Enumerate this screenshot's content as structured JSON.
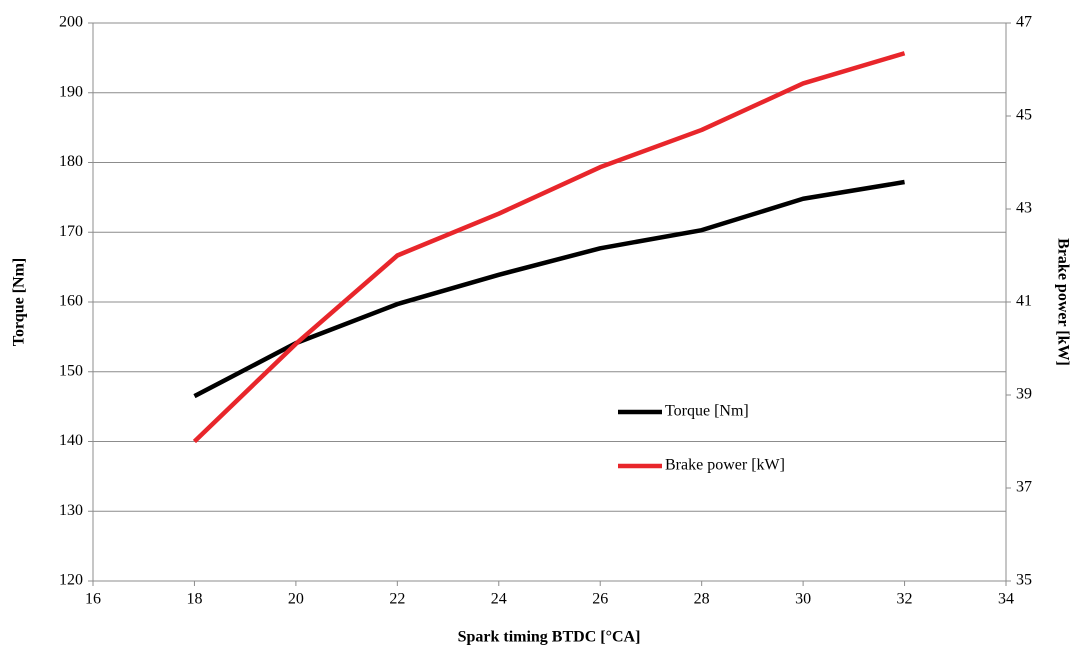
{
  "chart_data": {
    "type": "line",
    "x_label": "Spark timing BTDC [°CA]",
    "y_label": "Torque [Nm]",
    "y2_label": "Brake power [kW]",
    "x": [
      18,
      20,
      22,
      24,
      26,
      28,
      30,
      32
    ],
    "xlim": [
      16,
      34
    ],
    "xticks": [
      16,
      18,
      20,
      22,
      24,
      26,
      28,
      30,
      32,
      34
    ],
    "ylim": [
      120,
      200
    ],
    "yticks": [
      120,
      130,
      140,
      150,
      160,
      170,
      180,
      190,
      200
    ],
    "y2lim": [
      35,
      47
    ],
    "y2ticks": [
      35,
      37,
      39,
      41,
      43,
      45,
      47
    ],
    "grid": true,
    "series": [
      {
        "name": "Torque [Nm]",
        "color": "#000000",
        "values": [
          146.5,
          154.1,
          159.7,
          163.9,
          167.7,
          170.3,
          174.8,
          177.2
        ]
      },
      {
        "name": "Brake power [kW]",
        "color": "#e8262b",
        "axis": "y2",
        "values": [
          38.0,
          40.1,
          42.0,
          42.9,
          43.9,
          44.7,
          45.7,
          46.35
        ]
      }
    ]
  }
}
